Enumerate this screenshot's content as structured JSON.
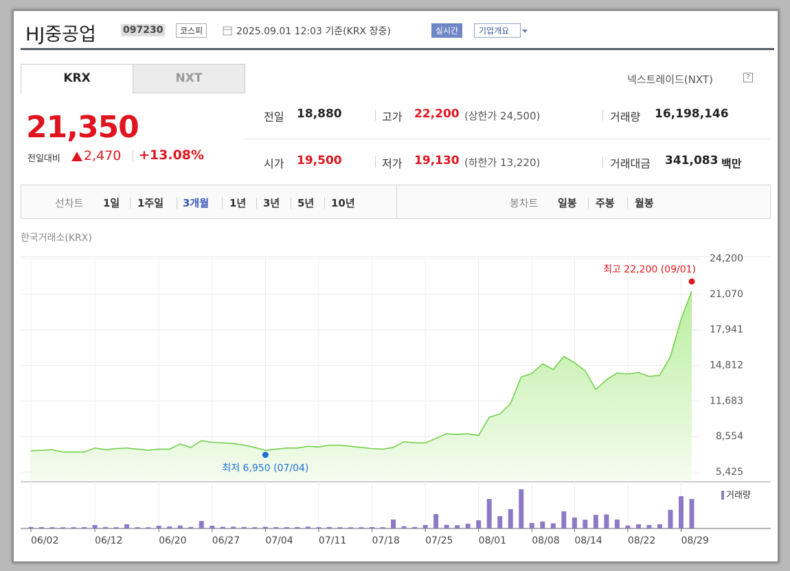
{
  "header": {
    "name": "HJ중공업",
    "code": "097230",
    "market": "코스피",
    "timestamp": "2025.09.01 12:03 기준(KRX 장중)",
    "realtime": "실시간",
    "company_info": "기업개요"
  },
  "tabs": [
    "KRX",
    "NXT"
  ],
  "nxt_link": "넥스트레이드(NXT)",
  "quote": {
    "price": "21,350",
    "change_label": "전일대비",
    "change": "2,470",
    "change_pct": "+13.08%"
  },
  "stats": [
    {
      "label": "전일",
      "value": "18,880"
    },
    {
      "label": "고가",
      "value": "22,200",
      "note": "(상한가 24,500)"
    },
    {
      "label": "거래량",
      "value": "16,198,146"
    },
    {
      "label": "시가",
      "value": "19,500"
    },
    {
      "label": "저가",
      "value": "19,130",
      "note": "(하한가 13,220)"
    },
    {
      "label": "거래대금",
      "value": "341,083",
      "unit": "백만"
    }
  ],
  "period_selector": {
    "line_label": "선차트",
    "line_periods": [
      "1일",
      "1주일",
      "3개월",
      "1년",
      "3년",
      "5년",
      "10년"
    ],
    "candle_label": "봉차트",
    "candle_periods": [
      "일봉",
      "주봉",
      "월봉"
    ]
  },
  "chart_data": {
    "type": "line",
    "title": "한국거래소(KRX)",
    "categories": [
      "06/02",
      null,
      null,
      null,
      null,
      null,
      "06/12",
      null,
      null,
      null,
      null,
      null,
      "06/20",
      null,
      null,
      null,
      null,
      "06/27",
      null,
      null,
      null,
      null,
      "07/04",
      null,
      null,
      null,
      null,
      "07/11",
      null,
      null,
      null,
      null,
      "07/18",
      null,
      null,
      null,
      null,
      "07/25",
      null,
      null,
      null,
      null,
      "08/01",
      null,
      null,
      null,
      null,
      "08/08",
      null,
      null,
      null,
      "08/14",
      null,
      null,
      null,
      null,
      "08/22",
      null,
      null,
      null,
      null,
      "08/29",
      null
    ],
    "series": [
      {
        "color": "#72d04a",
        "values": [
          7300,
          7350,
          7400,
          7200,
          7200,
          7200,
          7550,
          7400,
          7500,
          7550,
          7450,
          7350,
          7450,
          7450,
          7900,
          7600,
          8200,
          8050,
          8000,
          7950,
          7800,
          7600,
          7350,
          7450,
          7550,
          7550,
          7700,
          7650,
          7800,
          7800,
          7700,
          7600,
          7500,
          7450,
          7600,
          8100,
          8000,
          8000,
          8400,
          8800,
          8750,
          8800,
          8650,
          10250,
          10550,
          11450,
          13800,
          14100,
          14950,
          14450,
          15600,
          15050,
          14350,
          12700,
          13550,
          14150,
          14050,
          14200,
          13850,
          13950,
          15600,
          18880,
          21350
        ]
      },
      {
        "name": "거래량",
        "type": "bar",
        "axis": "y2",
        "color": "#8c7ac6",
        "values": [
          800000,
          750000,
          700000,
          650000,
          700000,
          750000,
          1900000,
          800000,
          700000,
          2300000,
          700000,
          650000,
          1500000,
          1100000,
          1600000,
          800000,
          4100000,
          1500000,
          900000,
          1000000,
          800000,
          700000,
          900000,
          750000,
          700000,
          750000,
          1000000,
          700000,
          800000,
          700000,
          650000,
          700000,
          750000,
          700000,
          4900000,
          1200000,
          800000,
          1900000,
          7900000,
          2000000,
          1800000,
          2600000,
          4500000,
          16200000,
          6800000,
          10600000,
          21500000,
          3000000,
          3800000,
          2800000,
          9400000,
          6000000,
          4800000,
          7500000,
          7700000,
          4900000,
          1600000,
          2300000,
          1900000,
          2300000,
          10200000,
          17700000,
          16198146
        ]
      }
    ],
    "ylim": [
      4700,
      24200
    ],
    "yticks": [
      {
        "value": 5425,
        "label": "5,425"
      },
      {
        "value": 8554,
        "label": "8,554"
      },
      {
        "value": 11683,
        "label": "11,683"
      },
      {
        "value": 14812,
        "label": "14,812"
      },
      {
        "value": 17941,
        "label": "17,941"
      },
      {
        "value": 21070,
        "label": "21,070"
      },
      {
        "value": 24200,
        "label": "24,200"
      }
    ],
    "y2lim": [
      0,
      24500000
    ],
    "grid": true,
    "legend": "upper right",
    "annotations": [
      {
        "text": "최고 22,200 (09/01)",
        "value": 22200,
        "index": 62,
        "color": "#e0141e"
      },
      {
        "text": "최저 6,950 (07/04)",
        "value": 6950,
        "index": 22,
        "color": "#1d6fd6"
      }
    ]
  }
}
